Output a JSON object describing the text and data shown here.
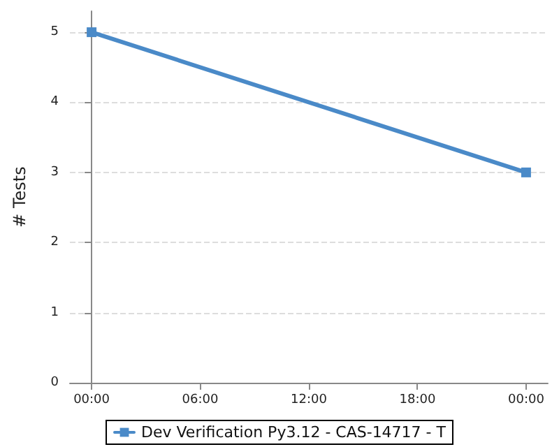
{
  "chart_data": {
    "type": "line",
    "ylabel": "# Tests",
    "x": [
      0,
      24
    ],
    "series": [
      {
        "name": "Dev Verification Py3.12 - CAS-14717 - T",
        "color": "#4a8ac8",
        "values": [
          5,
          3
        ]
      }
    ],
    "xlim": [
      -1.2,
      25.2
    ],
    "xticks": [
      {
        "value": 0,
        "label": "00:00"
      },
      {
        "value": 6,
        "label": "06:00"
      },
      {
        "value": 12,
        "label": "12:00"
      },
      {
        "value": 18,
        "label": "18:00"
      },
      {
        "value": 24,
        "label": "00:00"
      }
    ],
    "ylim": [
      0,
      5.3
    ],
    "yticks": [
      0,
      1,
      2,
      3,
      4,
      5
    ],
    "grid": "y",
    "legend": "bottom",
    "marker": "square",
    "line_style": "solid"
  }
}
